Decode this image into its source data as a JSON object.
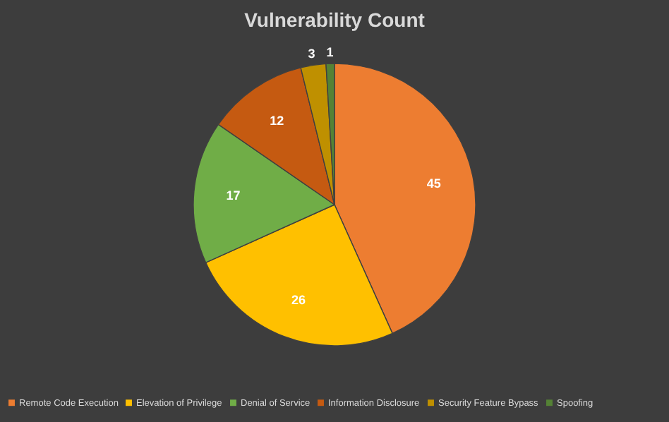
{
  "chart_data": {
    "type": "pie",
    "title": "Vulnerability Count",
    "categories": [
      "Remote Code Execution",
      "Elevation of Privilege",
      "Denial of Service",
      "Information Disclosure",
      "Security Feature Bypass",
      "Spoofing"
    ],
    "values": [
      45,
      26,
      17,
      12,
      3,
      1
    ],
    "colors": [
      "#ed7d31",
      "#ffc000",
      "#70ad47",
      "#c55a11",
      "#bf9000",
      "#548235"
    ],
    "data_labels": true,
    "legend": "bottom"
  }
}
